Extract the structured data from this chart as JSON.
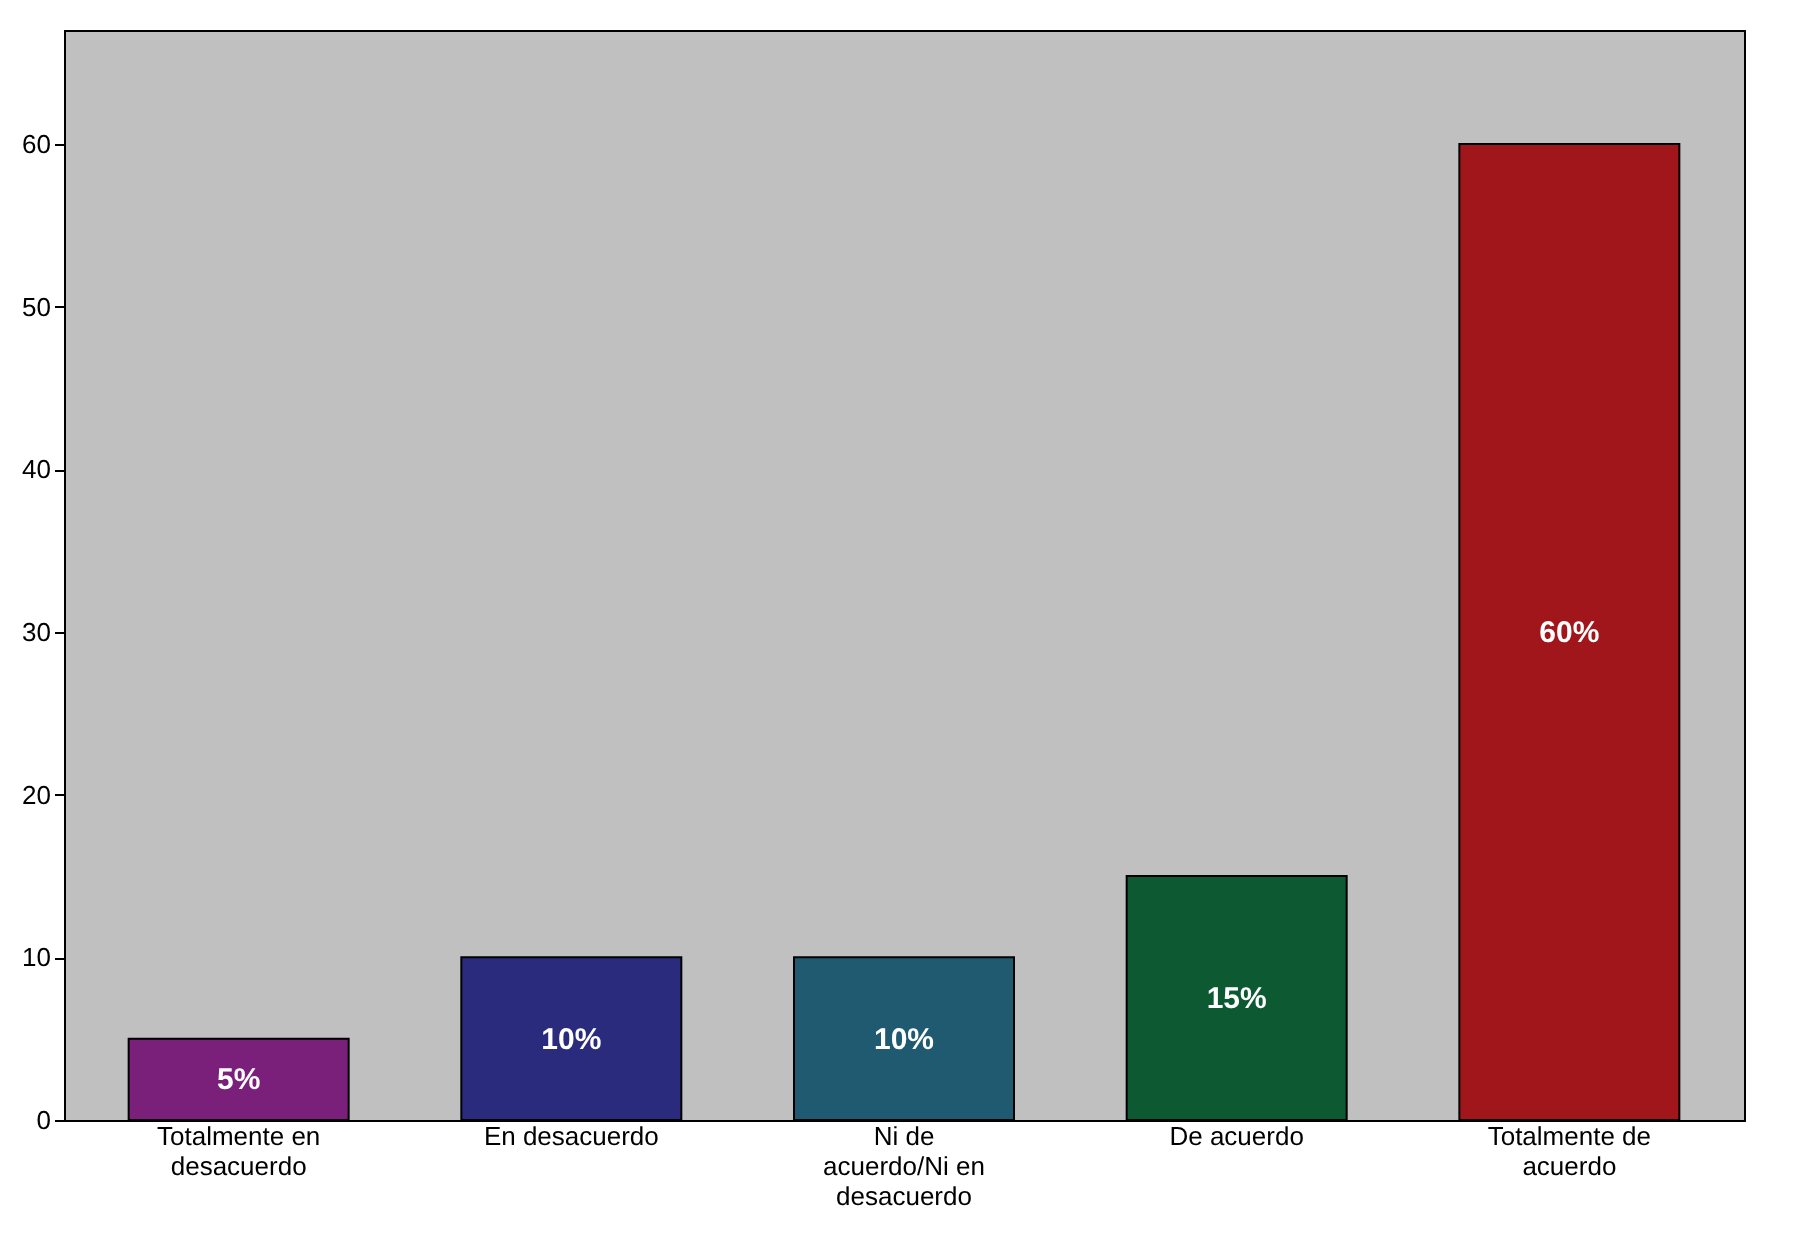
{
  "chart_data": {
    "type": "bar",
    "categories": [
      "Totalmente en desacuerdo",
      "En desacuerdo",
      "Ni de acuerdo/Ni en desacuerdo",
      "De acuerdo",
      "Totalmente de acuerdo"
    ],
    "values": [
      5,
      10,
      10,
      15,
      60
    ],
    "colors": [
      "#7a1f7a",
      "#2b2b7e",
      "#1f5a70",
      "#0d5a32",
      "#a0161b"
    ],
    "value_labels": [
      "5%",
      "10%",
      "10%",
      "15%",
      "60%"
    ],
    "ylim": [
      0,
      67
    ],
    "yticks": [
      0,
      10,
      20,
      30,
      40,
      50,
      60
    ],
    "grid": false
  }
}
